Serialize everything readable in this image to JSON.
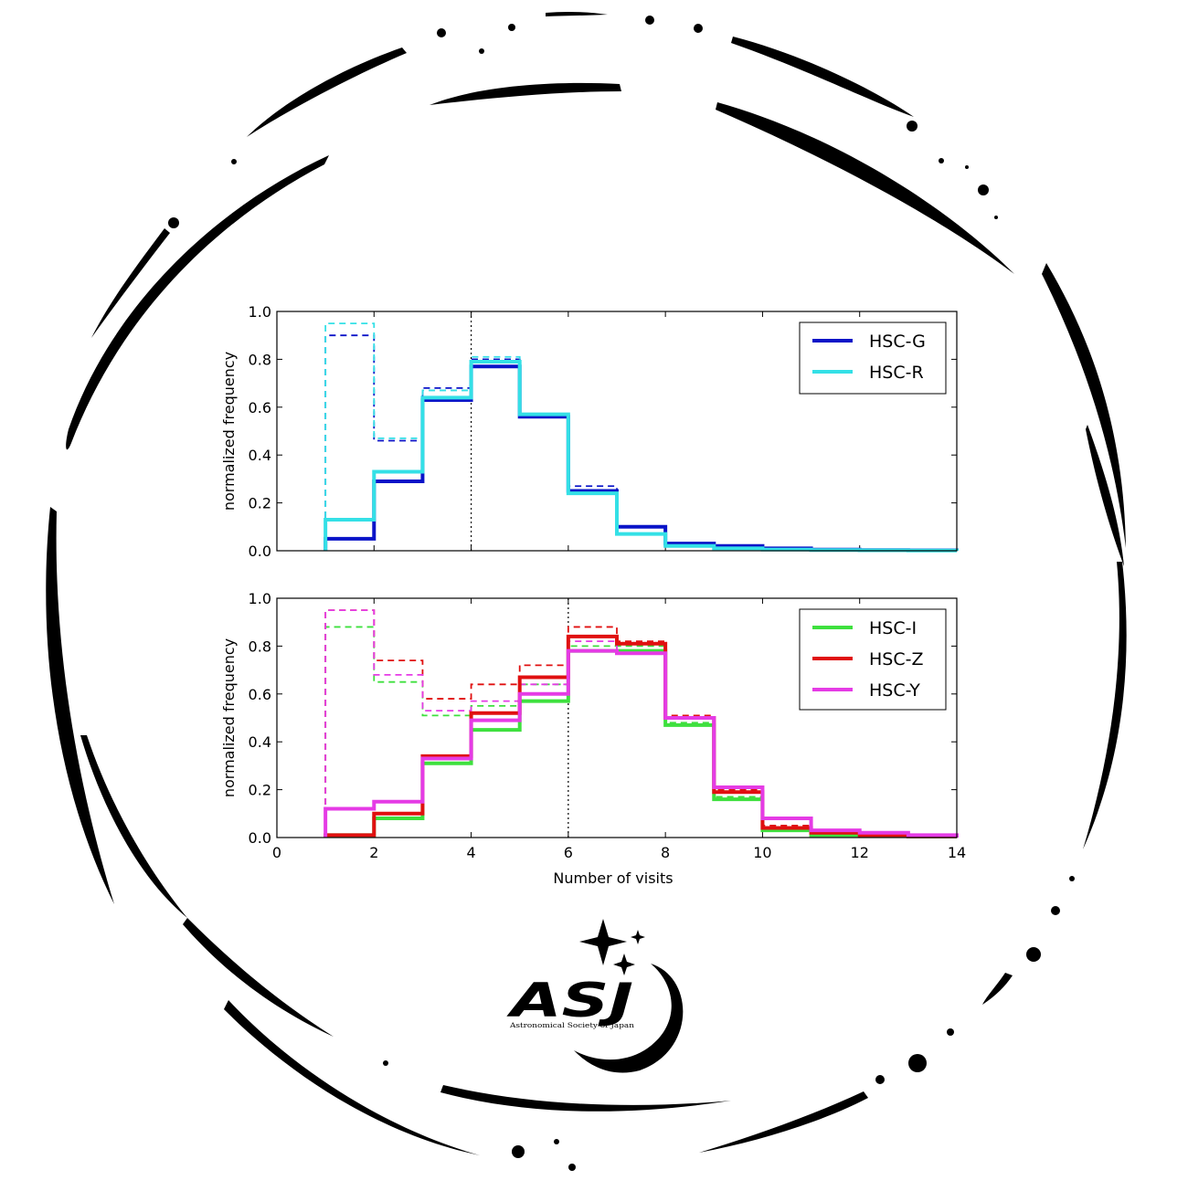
{
  "logo": {
    "wordmark": "ASJ",
    "subtitle": "Astronomical Society of Japan"
  },
  "colors": {
    "ring": "#000000",
    "HSC-G": "#0a14c8",
    "HSC-R": "#34e0e6",
    "HSC-I": "#3ee03e",
    "HSC-Z": "#e01010",
    "HSC-Y": "#e53be5"
  },
  "chart_data": [
    {
      "type": "step-histogram",
      "panel": "top",
      "xlabel": "",
      "ylabel": "normalized frequency",
      "xlim": [
        0,
        14
      ],
      "ylim": [
        0,
        1.0
      ],
      "yticks": [
        "0.0",
        "0.2",
        "0.4",
        "0.6",
        "0.8",
        "1.0"
      ],
      "xticks": [
        "0",
        "2",
        "4",
        "6",
        "8",
        "10",
        "12",
        "14"
      ],
      "vline_x": 4,
      "legend_position": "top-right",
      "bin_edges": [
        1,
        2,
        3,
        4,
        5,
        6,
        7,
        8,
        9,
        10,
        11,
        12,
        13,
        14
      ],
      "series": [
        {
          "name": "HSC-G",
          "style": "solid",
          "values": [
            0.05,
            0.29,
            0.63,
            0.77,
            0.56,
            0.25,
            0.1,
            0.03,
            0.02,
            0.01,
            0.005,
            0.003,
            0.002
          ]
        },
        {
          "name": "HSC-R",
          "style": "solid",
          "values": [
            0.13,
            0.33,
            0.64,
            0.79,
            0.57,
            0.24,
            0.07,
            0.02,
            0.01,
            0.005,
            0.003,
            0.002,
            0.001
          ]
        },
        {
          "name": "HSC-G",
          "style": "dashed",
          "values": [
            0.9,
            0.46,
            0.68,
            0.8,
            0.56,
            0.27,
            0.1,
            0.03,
            0.02,
            0.01,
            0.005,
            0.003,
            0.002
          ]
        },
        {
          "name": "HSC-R",
          "style": "dashed",
          "values": [
            0.95,
            0.47,
            0.67,
            0.81,
            0.57,
            0.25,
            0.07,
            0.02,
            0.01,
            0.005,
            0.003,
            0.002,
            0.001
          ]
        }
      ]
    },
    {
      "type": "step-histogram",
      "panel": "bottom",
      "xlabel": "Number of visits",
      "ylabel": "normalized frequency",
      "xlim": [
        0,
        14
      ],
      "ylim": [
        0,
        1.0
      ],
      "yticks": [
        "0.0",
        "0.2",
        "0.4",
        "0.6",
        "0.8",
        "1.0"
      ],
      "xticks": [
        "0",
        "2",
        "4",
        "6",
        "8",
        "10",
        "12",
        "14"
      ],
      "vline_x": 6,
      "legend_position": "top-right",
      "bin_edges": [
        1,
        2,
        3,
        4,
        5,
        6,
        7,
        8,
        9,
        10,
        11,
        12,
        13,
        14
      ],
      "series": [
        {
          "name": "HSC-I",
          "style": "solid",
          "values": [
            0.01,
            0.08,
            0.31,
            0.45,
            0.57,
            0.78,
            0.78,
            0.47,
            0.16,
            0.03,
            0.01,
            0.01,
            0.005
          ]
        },
        {
          "name": "HSC-Z",
          "style": "solid",
          "values": [
            0.01,
            0.1,
            0.34,
            0.52,
            0.67,
            0.84,
            0.81,
            0.5,
            0.19,
            0.04,
            0.02,
            0.01,
            0.005
          ]
        },
        {
          "name": "HSC-Y",
          "style": "solid",
          "values": [
            0.12,
            0.15,
            0.33,
            0.49,
            0.6,
            0.78,
            0.77,
            0.5,
            0.21,
            0.08,
            0.03,
            0.02,
            0.01
          ]
        },
        {
          "name": "HSC-I",
          "style": "dashed",
          "values": [
            0.88,
            0.65,
            0.51,
            0.55,
            0.64,
            0.8,
            0.8,
            0.48,
            0.17,
            0.04,
            0.01,
            0.01,
            0.005
          ]
        },
        {
          "name": "HSC-Z",
          "style": "dashed",
          "values": [
            0.95,
            0.74,
            0.58,
            0.64,
            0.72,
            0.88,
            0.82,
            0.51,
            0.2,
            0.05,
            0.02,
            0.01,
            0.005
          ]
        },
        {
          "name": "HSC-Y",
          "style": "dashed",
          "values": [
            0.95,
            0.68,
            0.53,
            0.57,
            0.64,
            0.82,
            0.78,
            0.5,
            0.21,
            0.08,
            0.03,
            0.02,
            0.01
          ]
        }
      ]
    }
  ]
}
